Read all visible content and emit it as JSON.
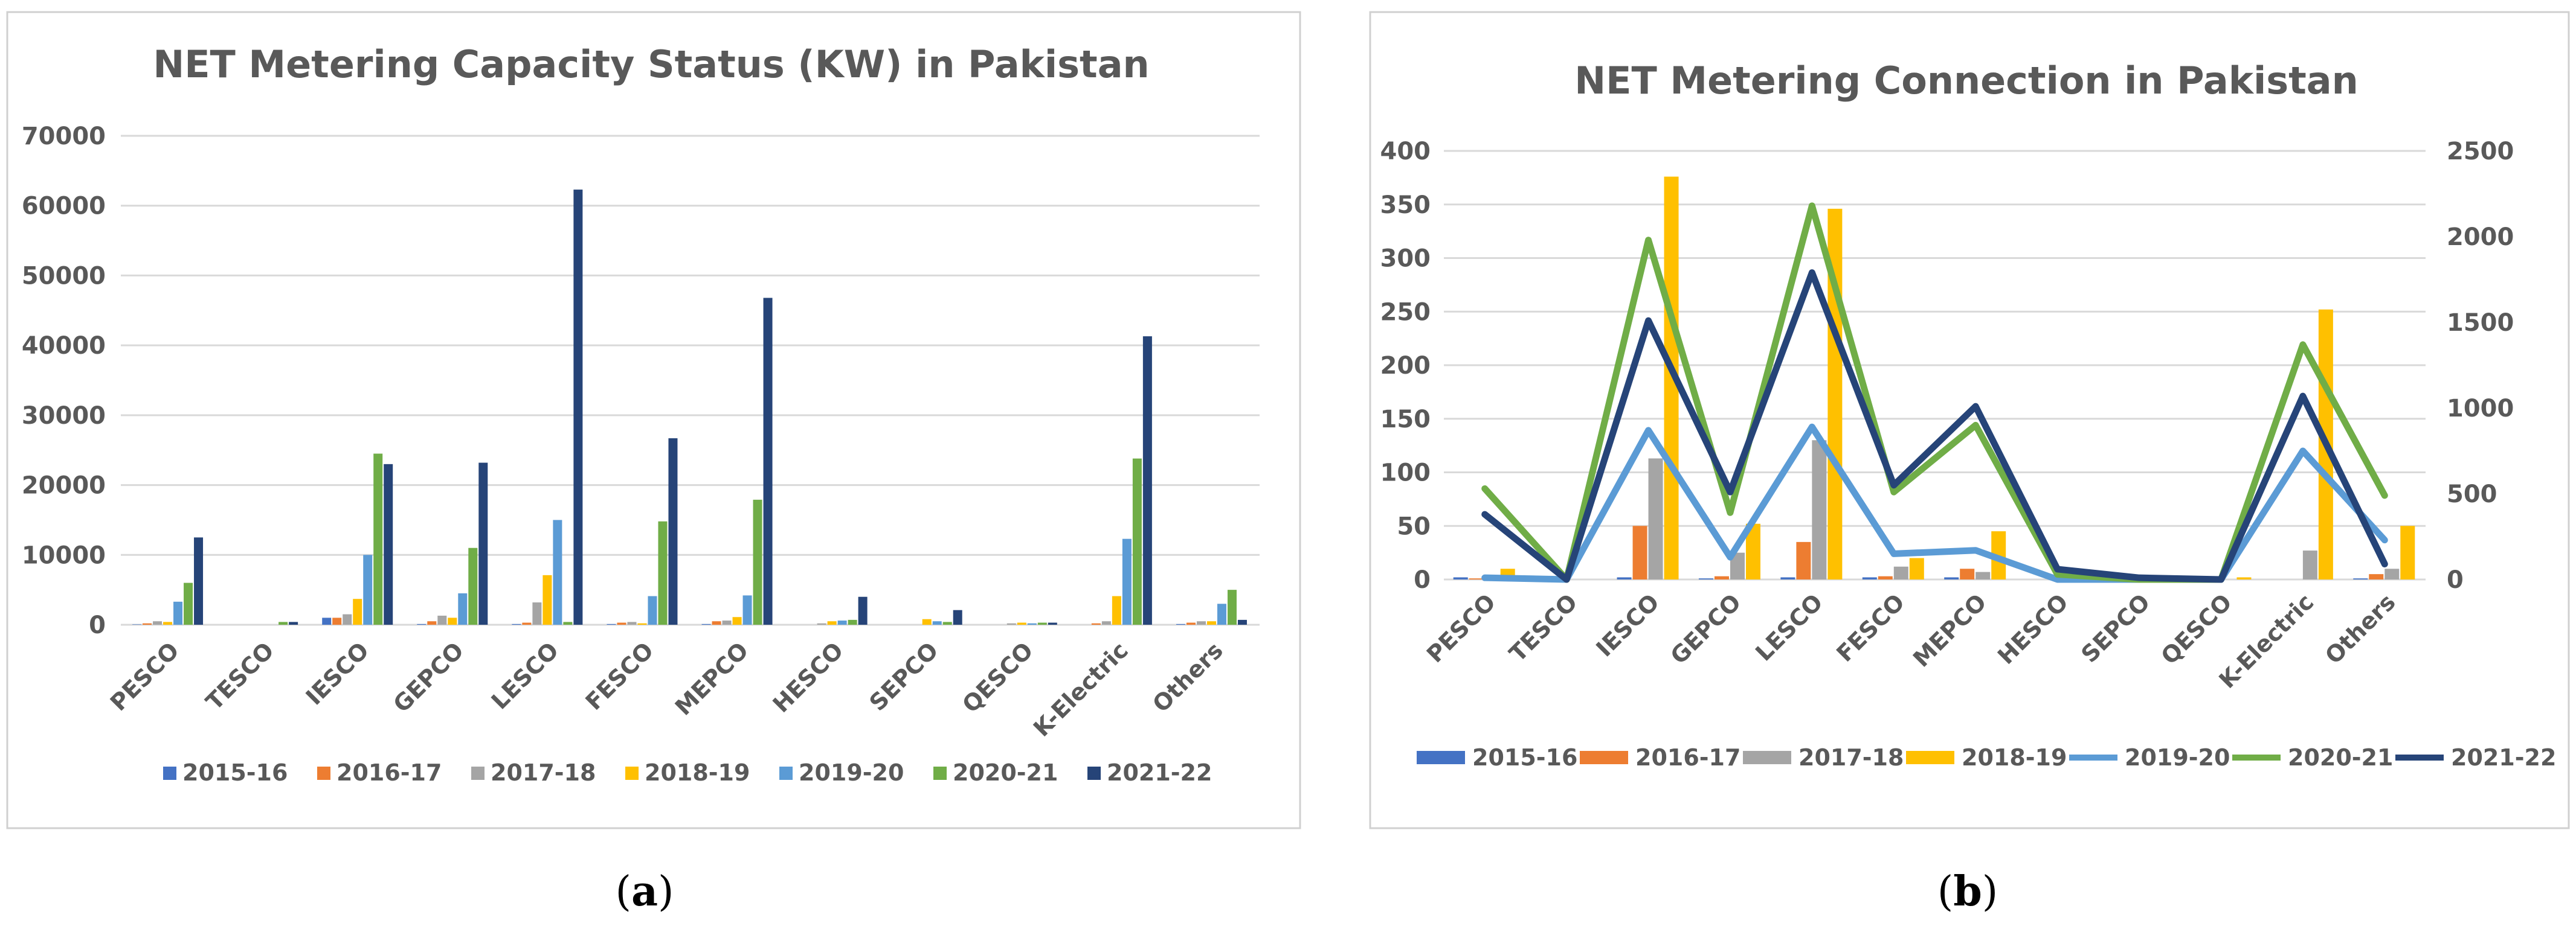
{
  "captions": [
    "(a)",
    "(b)"
  ],
  "caption_letters": [
    "a",
    "b"
  ],
  "colors": {
    "2015-16": "#4472c4",
    "2016-17": "#ed7d31",
    "2017-18": "#a5a5a5",
    "2018-19": "#ffc000",
    "2019-20": "#5b9bd5",
    "2020-21": "#70ad47",
    "2021-22": "#264478"
  },
  "chart_data": [
    {
      "type": "bar",
      "title": "NET Metering Capacity Status (KW) in Pakistan",
      "xlabel": "",
      "ylabel": "",
      "ylim": [
        0,
        70000
      ],
      "yticks": [
        "0",
        "10000",
        "20000",
        "30000",
        "40000",
        "50000",
        "60000",
        "70000"
      ],
      "categories": [
        "PESCO",
        "TESCO",
        "IESCO",
        "GEPCO",
        "LESCO",
        "FESCO",
        "MEPCO",
        "HESCO",
        "SEPCO",
        "QESCO",
        "K-Electric",
        "Others"
      ],
      "legend_position": "bottom",
      "series": [
        {
          "name": "2015-16",
          "values": [
            50,
            0,
            1000,
            100,
            100,
            100,
            100,
            0,
            0,
            0,
            0,
            100
          ]
        },
        {
          "name": "2016-17",
          "values": [
            200,
            0,
            1000,
            500,
            300,
            300,
            500,
            0,
            0,
            0,
            200,
            300
          ]
        },
        {
          "name": "2017-18",
          "values": [
            500,
            0,
            1500,
            1300,
            3200,
            400,
            600,
            200,
            0,
            200,
            500,
            500
          ]
        },
        {
          "name": "2018-19",
          "values": [
            400,
            0,
            3700,
            1000,
            7100,
            200,
            1100,
            500,
            800,
            300,
            4100,
            500
          ]
        },
        {
          "name": "2019-20",
          "values": [
            3300,
            0,
            10000,
            4500,
            15000,
            4100,
            4200,
            600,
            500,
            200,
            12300,
            3000
          ]
        },
        {
          "name": "2020-21",
          "values": [
            6000,
            400,
            24500,
            11000,
            400,
            14800,
            17900,
            700,
            400,
            300,
            23800,
            5000
          ]
        },
        {
          "name": "2021-22",
          "values": [
            12500,
            400,
            23000,
            23200,
            62300,
            26700,
            46800,
            4000,
            2100,
            300,
            41300,
            700
          ]
        }
      ]
    },
    {
      "type": "bar+line",
      "title": "NET Metering Connection in Pakistan",
      "xlabel": "",
      "ylabel": "",
      "ylim": [
        0,
        400
      ],
      "y2lim": [
        0,
        2500
      ],
      "yticks": [
        "0",
        "50",
        "100",
        "150",
        "200",
        "250",
        "300",
        "350",
        "400"
      ],
      "y2ticks": [
        "0",
        "500",
        "1000",
        "1500",
        "2000",
        "2500"
      ],
      "categories": [
        "PESCO",
        "TESCO",
        "IESCO",
        "GEPCO",
        "LESCO",
        "FESCO",
        "MEPCO",
        "HESCO",
        "SEPCO",
        "QESCO",
        "K-Electric",
        "Others"
      ],
      "legend_position": "bottom",
      "bar_series": [
        {
          "name": "2015-16",
          "axis": "left",
          "values": [
            2,
            0,
            2,
            1,
            2,
            2,
            2,
            0,
            0,
            0,
            0,
            1
          ]
        },
        {
          "name": "2016-17",
          "axis": "left",
          "values": [
            1,
            0,
            50,
            3,
            35,
            3,
            10,
            0,
            0,
            0,
            0,
            5
          ]
        },
        {
          "name": "2017-18",
          "axis": "left",
          "values": [
            0,
            0,
            113,
            25,
            130,
            12,
            7,
            0,
            0,
            0,
            27,
            10
          ]
        },
        {
          "name": "2018-19",
          "axis": "left",
          "values": [
            10,
            0,
            376,
            52,
            346,
            20,
            45,
            0,
            0,
            2,
            252,
            50
          ]
        }
      ],
      "line_series": [
        {
          "name": "2019-20",
          "axis": "right",
          "values": [
            10,
            0,
            870,
            130,
            890,
            150,
            170,
            0,
            0,
            0,
            750,
            230
          ]
        },
        {
          "name": "2020-21",
          "axis": "right",
          "values": [
            530,
            0,
            1980,
            390,
            2180,
            510,
            900,
            30,
            0,
            0,
            1370,
            490
          ]
        },
        {
          "name": "2021-22",
          "axis": "right",
          "values": [
            380,
            0,
            1510,
            510,
            1790,
            550,
            1010,
            60,
            10,
            0,
            1070,
            90
          ]
        }
      ]
    }
  ]
}
